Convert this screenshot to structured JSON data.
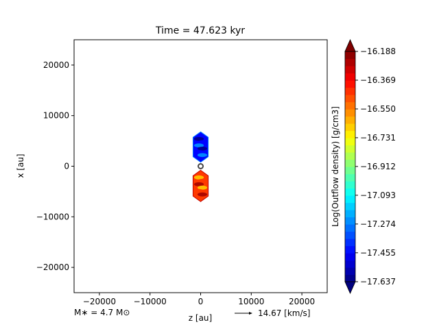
{
  "chart_data": {
    "type": "heatmap",
    "title": "Time = 47.623 kyr",
    "xlabel": "z [au]",
    "ylabel": "x [au]",
    "xlim": [
      -25000,
      25000
    ],
    "ylim": [
      -25000,
      25000
    ],
    "xticks": [
      -20000,
      -10000,
      0,
      10000,
      20000
    ],
    "xtick_labels": [
      "−20000",
      "−10000",
      "0",
      "10000",
      "20000"
    ],
    "yticks": [
      20000,
      10000,
      0,
      -10000,
      -20000
    ],
    "ytick_labels": [
      "20000",
      "10000",
      "0",
      "−10000",
      "−20000"
    ],
    "grid": false,
    "colorbar": {
      "label": "Log(Outflow density) [g/cm3]",
      "ticks": [
        -16.188,
        -16.369,
        -16.55,
        -16.731,
        -16.912,
        -17.093,
        -17.274,
        -17.455,
        -17.637
      ],
      "tick_labels": [
        "−16.188",
        "−16.369",
        "−16.550",
        "−16.731",
        "−16.912",
        "−17.093",
        "−17.274",
        "−17.455",
        "−17.637"
      ],
      "min": -17.637,
      "max": -16.188,
      "colormap": "jet",
      "extend": "both"
    },
    "lobes": [
      {
        "name": "upper",
        "z_range": [
          -1500,
          1500
        ],
        "x_range": [
          800,
          6800
        ],
        "value": -17.45
      },
      {
        "name": "lower",
        "z_range": [
          -1500,
          1500
        ],
        "x_range": [
          -7000,
          -800
        ],
        "value": -16.45
      }
    ],
    "star": {
      "z": 0,
      "x": 0
    },
    "annotation_mass": "M∗ = 4.7 M⊙",
    "velocity_key": {
      "label": "14.67 [km/s]"
    }
  }
}
